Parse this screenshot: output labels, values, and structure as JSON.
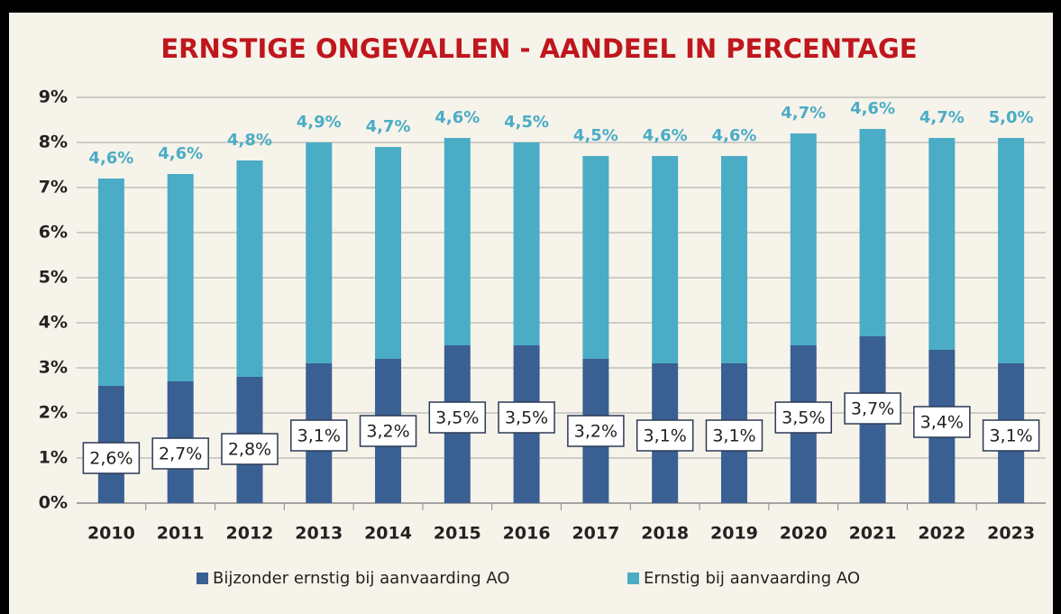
{
  "chart_data": {
    "type": "stacked_bar",
    "title": "ERNSTIGE ONGEVALLEN - AANDEEL IN PERCENTAGE",
    "categories": [
      "2010",
      "2011",
      "2012",
      "2013",
      "2014",
      "2015",
      "2016",
      "2017",
      "2018",
      "2019",
      "2020",
      "2021",
      "2022",
      "2023"
    ],
    "series": [
      {
        "name": "Bijzonder ernstig bij aanvaarding AO",
        "color": "#3a5f93",
        "values": [
          2.6,
          2.7,
          2.8,
          3.1,
          3.2,
          3.5,
          3.5,
          3.2,
          3.1,
          3.1,
          3.5,
          3.7,
          3.4,
          3.1
        ],
        "value_labels": [
          "2,6%",
          "2,7%",
          "2,8%",
          "3,1%",
          "3,2%",
          "3,5%",
          "3,5%",
          "3,2%",
          "3,1%",
          "3,1%",
          "3,5%",
          "3,7%",
          "3,4%",
          "3,1%"
        ]
      },
      {
        "name": "Ernstig bij aanvaarding AO",
        "color": "#4bacc6",
        "values": [
          4.6,
          4.6,
          4.8,
          4.9,
          4.7,
          4.6,
          4.5,
          4.5,
          4.6,
          4.6,
          4.7,
          4.6,
          4.7,
          5.0
        ],
        "value_labels": [
          "4,6%",
          "4,6%",
          "4,8%",
          "4,9%",
          "4,7%",
          "4,6%",
          "4,5%",
          "4,5%",
          "4,6%",
          "4,6%",
          "4,7%",
          "4,6%",
          "4,7%",
          "5,0%"
        ]
      }
    ],
    "ylim": [
      0,
      9
    ],
    "yticks": [
      {
        "value": 0,
        "label": "0%"
      },
      {
        "value": 1,
        "label": "1%"
      },
      {
        "value": 2,
        "label": "2%"
      },
      {
        "value": 3,
        "label": "3%"
      },
      {
        "value": 4,
        "label": "4%"
      },
      {
        "value": 5,
        "label": "5%"
      },
      {
        "value": 6,
        "label": "6%"
      },
      {
        "value": 7,
        "label": "7%"
      },
      {
        "value": 8,
        "label": "8%"
      },
      {
        "value": 9,
        "label": "9%"
      }
    ],
    "grid": true,
    "legend": "bottom"
  }
}
